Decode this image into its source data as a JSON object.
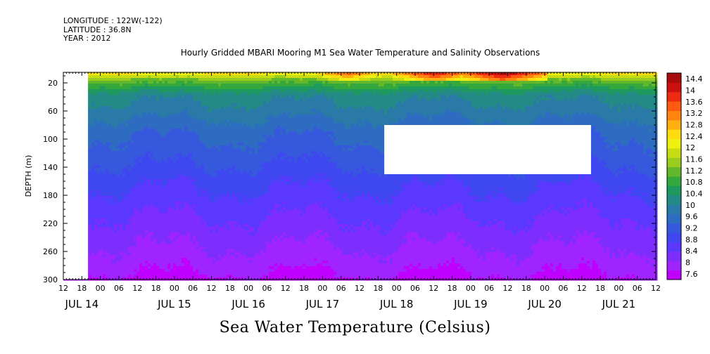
{
  "header": {
    "longitude": "LONGITUDE : 122W(-122)",
    "latitude": "LATITUDE : 36.8N",
    "year": "YEAR : 2012"
  },
  "chart_data": {
    "type": "heatmap",
    "title": "Hourly Gridded MBARI Mooring M1 Sea Water Temperature and Salinity Observations",
    "subtitle": "Sea Water Temperature (Celsius)",
    "ylabel": "DEPTH (m)",
    "ylim": [
      300,
      0
    ],
    "yticks": [
      20,
      60,
      100,
      140,
      180,
      220,
      260,
      300
    ],
    "x_start": "JUL 14 12:00",
    "x_end": "JUL 21 15:00",
    "xticks_hour": [
      "12",
      "18",
      "00",
      "06",
      "12",
      "18",
      "00",
      "06",
      "12",
      "18",
      "00",
      "06",
      "12",
      "18",
      "00",
      "06",
      "12",
      "18",
      "00",
      "06",
      "12",
      "18",
      "00",
      "06",
      "12",
      "18",
      "00",
      "06",
      "12",
      "18",
      "00",
      "06",
      "12"
    ],
    "xticks_day": [
      "JUL 14",
      "JUL 15",
      "JUL 16",
      "JUL 17",
      "JUL 18",
      "JUL 19",
      "JUL 20",
      "JUL 21"
    ],
    "colorbar": {
      "levels": [
        7.6,
        8,
        8.4,
        8.8,
        9.2,
        9.6,
        10,
        10.4,
        10.8,
        11.2,
        11.6,
        12,
        12.4,
        12.8,
        13.2,
        13.6,
        14,
        14.4
      ],
      "colors": [
        "#c000ff",
        "#a024ff",
        "#7d2eff",
        "#5a38ff",
        "#3f48f0",
        "#3658dc",
        "#2e6cc2",
        "#2a7aa8",
        "#248a86",
        "#1e9a60",
        "#34a83c",
        "#62b82a",
        "#9acc1e",
        "#c8dc14",
        "#eef010",
        "#ffdc10",
        "#ffb010",
        "#ff8410",
        "#ff5a10",
        "#ee2a10",
        "#cc1010",
        "#a80c0c"
      ]
    },
    "depth_profile": [
      {
        "depth": 5,
        "temp": 12.2
      },
      {
        "depth": 12,
        "temp": 11.4
      },
      {
        "depth": 20,
        "temp": 10.9
      },
      {
        "depth": 35,
        "temp": 10.2
      },
      {
        "depth": 60,
        "temp": 9.9
      },
      {
        "depth": 90,
        "temp": 9.5
      },
      {
        "depth": 130,
        "temp": 9.2
      },
      {
        "depth": 160,
        "temp": 8.9
      },
      {
        "depth": 200,
        "temp": 8.6
      },
      {
        "depth": 240,
        "temp": 8.3
      },
      {
        "depth": 280,
        "temp": 8.0
      },
      {
        "depth": 300,
        "temp": 7.8
      }
    ],
    "missing_regions": [
      {
        "x_from": "JUL 14 12:00",
        "x_to": "JUL 14 20:00",
        "depth_from": 0,
        "depth_to": 300
      },
      {
        "x_from": "JUL 18 20:00",
        "x_to": "JUL 21 15:00",
        "depth_from": 80,
        "depth_to": 150
      }
    ],
    "surface_warm_events": [
      {
        "center": "JUL 18 08:00",
        "peak_temp": 13.2
      },
      {
        "center": "JUL 19 12:00",
        "peak_temp": 13.8
      },
      {
        "center": "JUL 20 10:00",
        "peak_temp": 14.2
      }
    ]
  }
}
